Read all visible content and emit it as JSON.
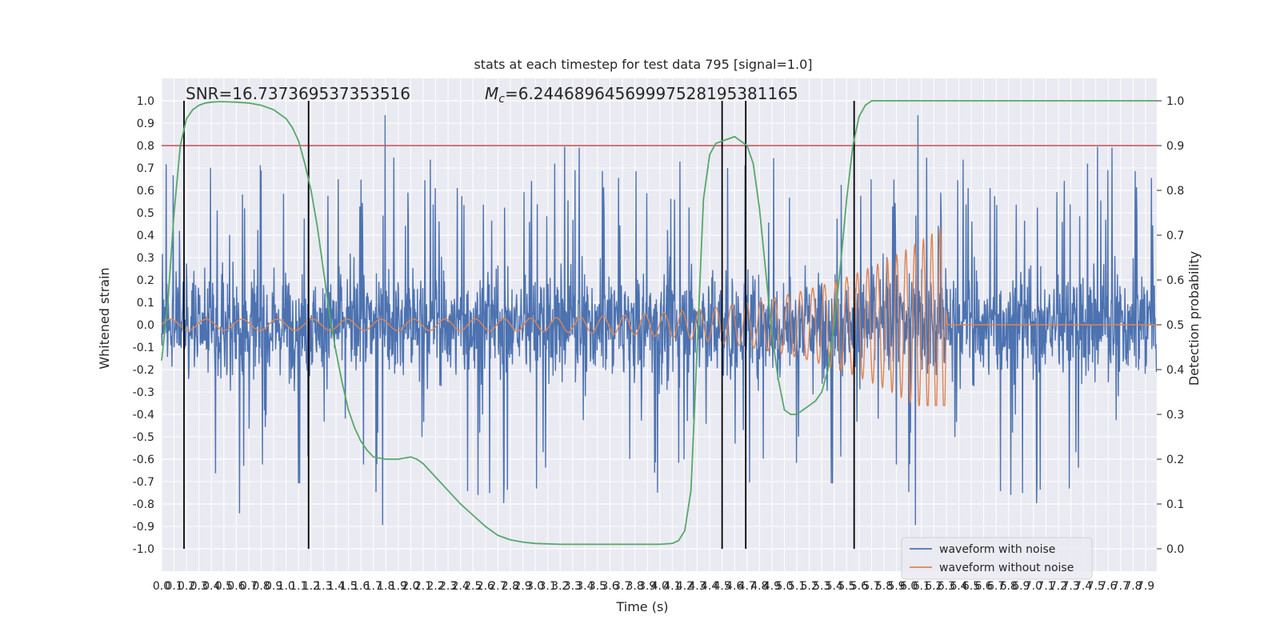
{
  "chart_data": {
    "type": "line",
    "title": "stats at each timestep for test data 795 [signal=1.0]",
    "xlabel": "Time (s)",
    "ylabel": "Whitened strain",
    "y2label": "Detection probability",
    "xlim": [
      0.0,
      7.99
    ],
    "ylim": [
      -1.1,
      1.1
    ],
    "y2lim": [
      -0.05,
      1.05
    ],
    "xticks": [
      0.0,
      0.1,
      0.2,
      0.3,
      0.4,
      0.5,
      0.6,
      0.7,
      0.8,
      0.9,
      1.0,
      1.1,
      1.2,
      1.3,
      1.4,
      1.5,
      1.6,
      1.7,
      1.8,
      1.9,
      2.0,
      2.1,
      2.2,
      2.3,
      2.4,
      2.5,
      2.6,
      2.7,
      2.8,
      2.9,
      3.0,
      3.1,
      3.2,
      3.3,
      3.4,
      3.5,
      3.6,
      3.7,
      3.8,
      3.9,
      4.0,
      4.1,
      4.2,
      4.3,
      4.4,
      4.5,
      4.6,
      4.7,
      4.8,
      4.9,
      5.0,
      5.1,
      5.2,
      5.3,
      5.4,
      5.5,
      5.6,
      5.7,
      5.8,
      5.9,
      6.0,
      6.1,
      6.2,
      6.3,
      6.4,
      6.5,
      6.6,
      6.7,
      6.8,
      6.9,
      7.0,
      7.1,
      7.2,
      7.3,
      7.4,
      7.5,
      7.6,
      7.7,
      7.8,
      7.9
    ],
    "yticks": [
      1.0,
      0.9,
      0.8,
      0.7,
      0.6,
      0.5,
      0.4,
      0.3,
      0.2,
      0.1,
      0.0,
      -0.1,
      -0.2,
      -0.3,
      -0.4,
      -0.5,
      -0.6,
      -0.7,
      -0.8,
      -0.9,
      -1.0
    ],
    "y2ticks": [
      1.0,
      0.9,
      0.8,
      0.7,
      0.6,
      0.5,
      0.4,
      0.3,
      0.2,
      0.1,
      0.0
    ],
    "annotations": {
      "snr": "SNR=16.737369537353516",
      "mc": "M",
      "mc_sub": "c",
      "mc_value": "=6.24468964569997528195381165"
    },
    "threshold_line": {
      "value": 0.8,
      "axis": "left",
      "color": "#c44e52"
    },
    "vertical_lines": [
      0.18,
      1.18,
      4.5,
      4.69,
      5.56
    ],
    "series": [
      {
        "name": "waveform with noise",
        "color": "#4c72b0",
        "envelope_abs": 0.42,
        "spike_range": [
          -0.96,
          1.0
        ],
        "seed": 795
      },
      {
        "name": "waveform without noise",
        "color": "#dd8452",
        "chirp": {
          "t_start": 0.0,
          "t_merge": 6.3,
          "amp_start": 0.025,
          "amp_peak": 0.45,
          "amp_min": -0.36,
          "f_start": 58,
          "f_end": 260
        }
      },
      {
        "name": "detection probability",
        "axis": "right",
        "color": "#55a868",
        "x": [
          0.0,
          0.05,
          0.1,
          0.15,
          0.2,
          0.25,
          0.3,
          0.35,
          0.4,
          0.45,
          0.5,
          0.6,
          0.7,
          0.8,
          0.9,
          1.0,
          1.05,
          1.1,
          1.15,
          1.2,
          1.25,
          1.3,
          1.35,
          1.4,
          1.45,
          1.5,
          1.55,
          1.6,
          1.65,
          1.7,
          1.8,
          1.9,
          2.0,
          2.05,
          2.1,
          2.2,
          2.3,
          2.4,
          2.5,
          2.6,
          2.7,
          2.8,
          2.9,
          3.0,
          3.2,
          3.5,
          3.8,
          4.0,
          4.1,
          4.15,
          4.2,
          4.25,
          4.3,
          4.35,
          4.4,
          4.45,
          4.5,
          4.55,
          4.6,
          4.65,
          4.7,
          4.75,
          4.8,
          4.85,
          4.9,
          4.95,
          5.0,
          5.05,
          5.1,
          5.15,
          5.2,
          5.25,
          5.3,
          5.35,
          5.4,
          5.45,
          5.5,
          5.55,
          5.6,
          5.65,
          5.7,
          5.75,
          5.8,
          5.9,
          6.0,
          6.5,
          7.0,
          7.5,
          7.99
        ],
        "y": [
          0.42,
          0.55,
          0.75,
          0.9,
          0.96,
          0.98,
          0.99,
          0.995,
          0.997,
          0.998,
          0.998,
          0.997,
          0.995,
          0.99,
          0.98,
          0.96,
          0.94,
          0.91,
          0.86,
          0.8,
          0.72,
          0.62,
          0.52,
          0.44,
          0.37,
          0.31,
          0.27,
          0.24,
          0.22,
          0.205,
          0.2,
          0.2,
          0.205,
          0.2,
          0.19,
          0.16,
          0.13,
          0.1,
          0.075,
          0.05,
          0.03,
          0.02,
          0.015,
          0.012,
          0.01,
          0.01,
          0.01,
          0.01,
          0.012,
          0.018,
          0.04,
          0.13,
          0.45,
          0.78,
          0.88,
          0.905,
          0.91,
          0.915,
          0.92,
          0.91,
          0.9,
          0.86,
          0.76,
          0.62,
          0.48,
          0.38,
          0.31,
          0.3,
          0.3,
          0.31,
          0.32,
          0.33,
          0.35,
          0.4,
          0.5,
          0.63,
          0.78,
          0.9,
          0.965,
          0.99,
          1.0,
          1.0,
          1.0,
          1.0,
          1.0,
          1.0,
          1.0,
          1.0,
          1.0
        ]
      }
    ],
    "legend": {
      "placement": "lower-right",
      "entries": [
        {
          "label": "waveform with noise",
          "color": "#4c72b0"
        },
        {
          "label": "waveform without noise",
          "color": "#dd8452"
        }
      ]
    },
    "grid": true,
    "plot_background": "#eaeaf2"
  }
}
